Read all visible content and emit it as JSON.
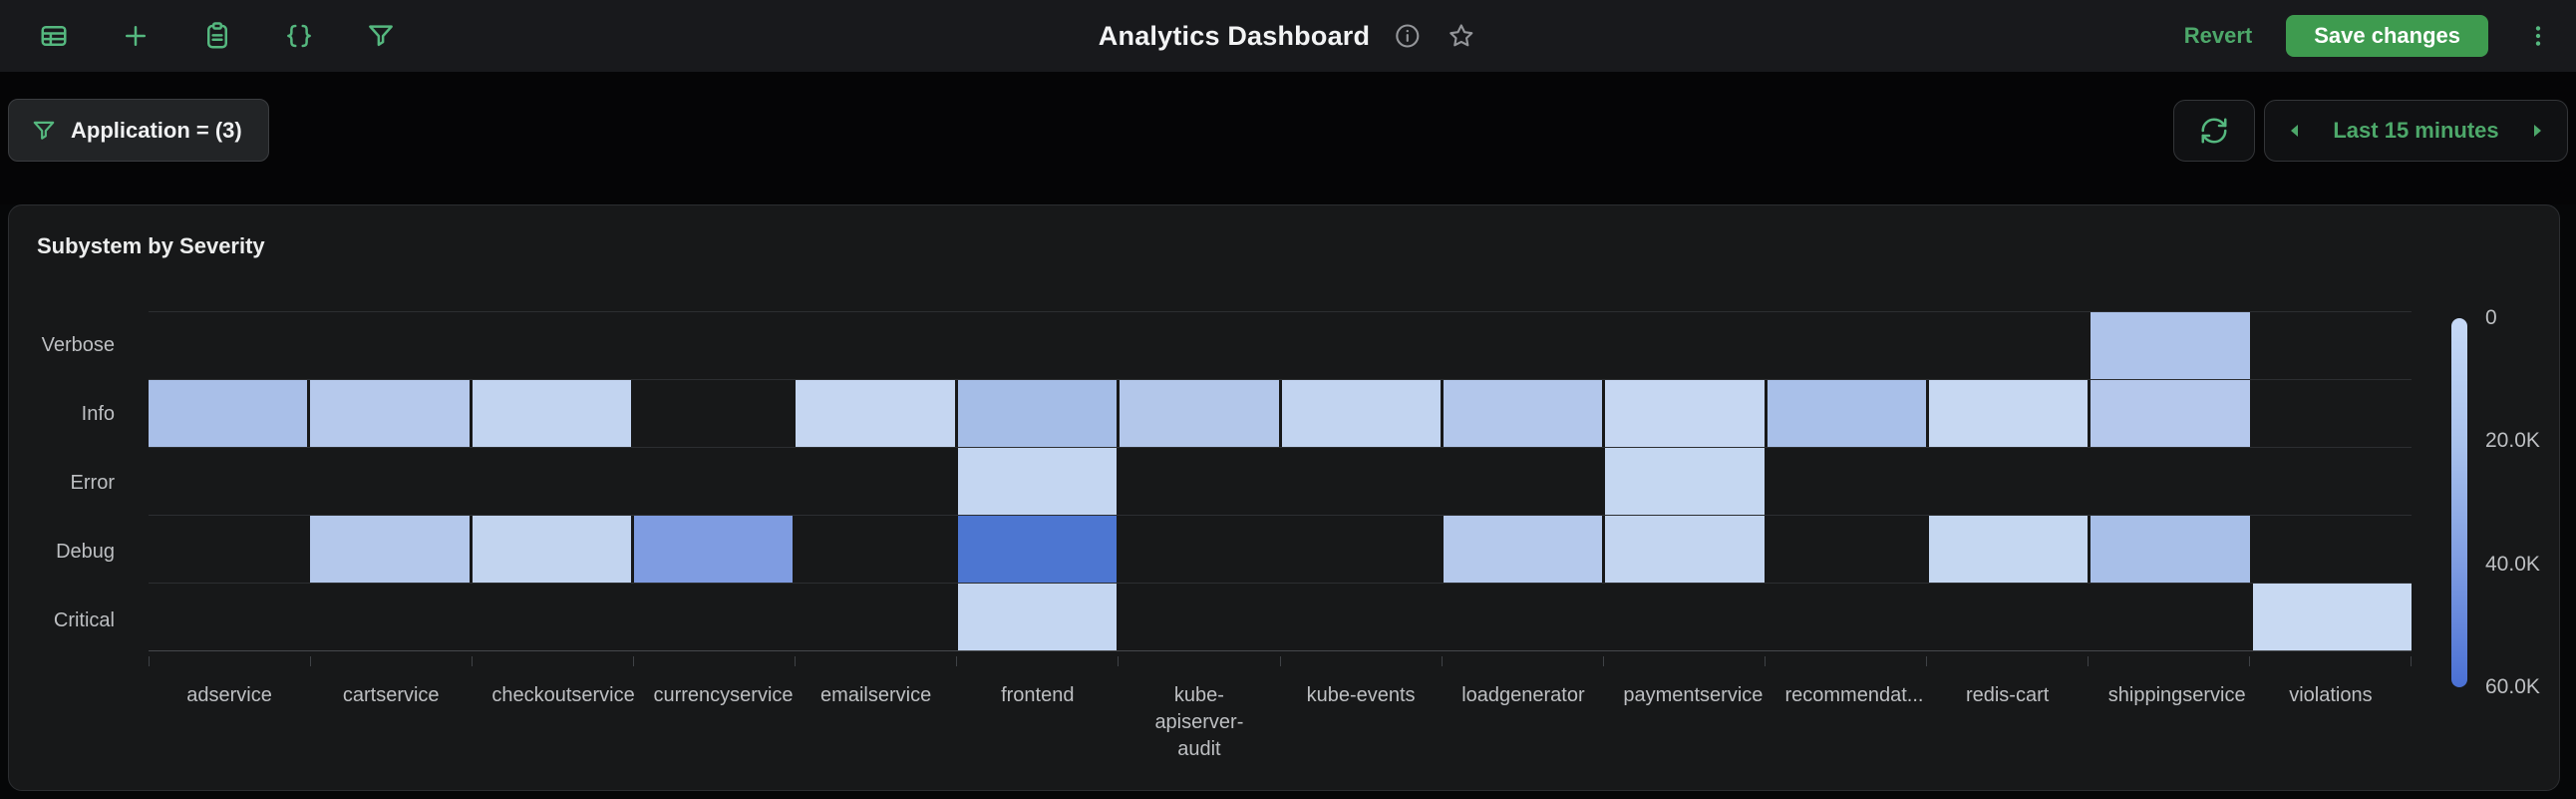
{
  "topbar": {
    "title": "Analytics Dashboard",
    "revert_label": "Revert",
    "save_label": "Save changes",
    "left_icons": [
      "table-icon",
      "plus-icon",
      "clipboard-icon",
      "braces-icon",
      "funnel-icon"
    ],
    "title_icons": [
      "info-icon",
      "star-icon"
    ],
    "right_icons": [
      "kebab-menu-icon"
    ]
  },
  "filterbar": {
    "chip_label": "Application = (3)",
    "chip_icon": "funnel-icon",
    "refresh_icon": "refresh-icon",
    "time_range_label": "Last 15 minutes",
    "time_arrows": [
      "previous-range-icon",
      "next-range-icon"
    ]
  },
  "panel": {
    "title": "Subystem by Severity"
  },
  "colors": {
    "accent_green_icon": "#55b87f",
    "accent_green_text": "#4da86a",
    "save_button_green": "#3e9b4f",
    "panel_bg": "#171819",
    "topbar_bg": "#18191c",
    "page_bg": "#050506",
    "muted_label": "#bdbfc2",
    "heat_scale_light": "#c6d9f6",
    "heat_scale_dark": "#4a70d4"
  },
  "chart_data": {
    "type": "heatmap",
    "title": "Subystem by Severity",
    "x_categories": [
      "adservice",
      "cartservice",
      "checkoutservice",
      "currencyservice",
      "emailservice",
      "frontend",
      "kube-apiserver-audit",
      "kube-events",
      "loadgenerator",
      "paymentservice",
      "recommendat...",
      "redis-cart",
      "shippingservice",
      "violations"
    ],
    "y_categories": [
      "Verbose",
      "Info",
      "Error",
      "Debug",
      "Critical"
    ],
    "colorbar": {
      "min": 0,
      "max": 60000,
      "ticks": [
        "0",
        "20.0K",
        "40.0K",
        "60.0K"
      ],
      "orientation": "vertical-right",
      "light_color": "#c6d9f6",
      "dark_color": "#4a70d4"
    },
    "cells": [
      {
        "y": "Verbose",
        "x": "shippingservice",
        "color": "#aec3ea",
        "value_estimate": 18000
      },
      {
        "y": "Info",
        "x": "adservice",
        "color": "#a9bfe8",
        "value_estimate": 21000
      },
      {
        "y": "Info",
        "x": "cartservice",
        "color": "#b6c9ec",
        "value_estimate": 15000
      },
      {
        "y": "Info",
        "x": "checkoutservice",
        "color": "#c2d4f0",
        "value_estimate": 9500
      },
      {
        "y": "Info",
        "x": "emailservice",
        "color": "#c5d6f1",
        "value_estimate": 8000
      },
      {
        "y": "Info",
        "x": "frontend",
        "color": "#a5bde7",
        "value_estimate": 22000
      },
      {
        "y": "Info",
        "x": "kube-apiserver-audit",
        "color": "#b3c7ea",
        "value_estimate": 14500
      },
      {
        "y": "Info",
        "x": "kube-events",
        "color": "#c2d4f0",
        "value_estimate": 9500
      },
      {
        "y": "Info",
        "x": "loadgenerator",
        "color": "#b3c7eb",
        "value_estimate": 14500
      },
      {
        "y": "Info",
        "x": "paymentservice",
        "color": "#c6d7f2",
        "value_estimate": 6500
      },
      {
        "y": "Info",
        "x": "recommendat...",
        "color": "#a9c0e9",
        "value_estimate": 20500
      },
      {
        "y": "Info",
        "x": "redis-cart",
        "color": "#c7d8f2",
        "value_estimate": 6000
      },
      {
        "y": "Info",
        "x": "shippingservice",
        "color": "#b5c8ec",
        "value_estimate": 15000
      },
      {
        "y": "Error",
        "x": "frontend",
        "color": "#c4d6f1",
        "value_estimate": 8500
      },
      {
        "y": "Error",
        "x": "paymentservice",
        "color": "#c5d7f1",
        "value_estimate": 8000
      },
      {
        "y": "Debug",
        "x": "cartservice",
        "color": "#b4c8eb",
        "value_estimate": 15500
      },
      {
        "y": "Debug",
        "x": "checkoutservice",
        "color": "#c2d4ef",
        "value_estimate": 9500
      },
      {
        "y": "Debug",
        "x": "currencyservice",
        "color": "#7f9ce1",
        "value_estimate": 38000
      },
      {
        "y": "Debug",
        "x": "frontend",
        "color": "#4d76d1",
        "value_estimate": 56000
      },
      {
        "y": "Debug",
        "x": "loadgenerator",
        "color": "#b5c9ec",
        "value_estimate": 15000
      },
      {
        "y": "Debug",
        "x": "paymentservice",
        "color": "#c3d5f0",
        "value_estimate": 9000
      },
      {
        "y": "Debug",
        "x": "redis-cart",
        "color": "#c5d7f1",
        "value_estimate": 8000
      },
      {
        "y": "Debug",
        "x": "shippingservice",
        "color": "#a8bfe8",
        "value_estimate": 21000
      },
      {
        "y": "Critical",
        "x": "frontend",
        "color": "#c4d6f1",
        "value_estimate": 8500
      },
      {
        "y": "Critical",
        "x": "violations",
        "color": "#c8d9f2",
        "value_estimate": 5500
      }
    ],
    "layout": {
      "grid": "off",
      "rows": 5,
      "cols": 14,
      "empty_cell": "transparent"
    }
  }
}
